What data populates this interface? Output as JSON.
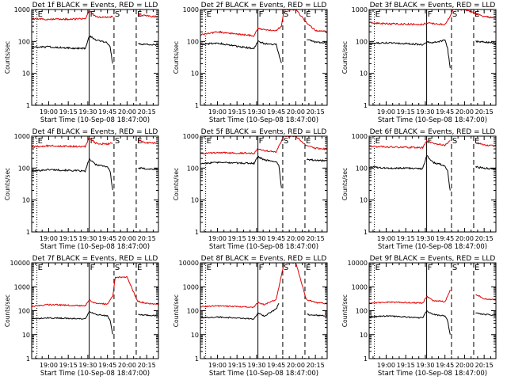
{
  "chart_data": [
    {
      "type": "line",
      "title": "Det 1f BLACK = Events, RED = LLD",
      "ylabel": "Counts/sec",
      "xlabel": "Start Time (10-Sep-08 18:47:00)",
      "yscale": "log",
      "ylim": [
        1,
        1000
      ],
      "y_ticks": [
        "1",
        "10",
        "100",
        "1000"
      ],
      "x_ticks": [
        "19:00",
        "19:15",
        "19:30",
        "19:45",
        "20:00",
        "20:15"
      ],
      "markers": [
        {
          "label": "E",
          "style": "dotted",
          "time": "18:51"
        },
        {
          "label": "F",
          "style": "solid",
          "time": "19:31"
        },
        {
          "label": "S",
          "style": "dashed",
          "time": "19:50"
        },
        {
          "label": "E",
          "style": "dashed",
          "time": "20:07"
        }
      ],
      "series": [
        {
          "color": "#e00000",
          "x": [
            "18:47",
            "19:00",
            "19:15",
            "19:28",
            "19:31",
            "19:36",
            "19:45",
            "19:49",
            "19:51",
            "20:00",
            "20:08",
            "20:15",
            "20:24"
          ],
          "y": [
            520,
            490,
            500,
            510,
            900,
            600,
            560,
            600,
            null,
            null,
            700,
            630,
            590
          ]
        },
        {
          "color": "#000000",
          "x": [
            "18:47",
            "19:00",
            "19:15",
            "19:28",
            "19:31",
            "19:36",
            "19:45",
            "19:47",
            "19:49",
            "19:51",
            "20:00",
            "20:08",
            "20:15",
            "20:24"
          ],
          "y": [
            65,
            68,
            62,
            60,
            150,
            110,
            90,
            70,
            20,
            null,
            null,
            85,
            80,
            78
          ]
        }
      ]
    },
    {
      "type": "line",
      "title": "Det 2f BLACK = Events, RED = LLD",
      "ylabel": "Counts/sec",
      "xlabel": "Start Time (10-Sep-08 18:47:00)",
      "yscale": "log",
      "ylim": [
        1,
        1000
      ],
      "y_ticks": [
        "1",
        "10",
        "100",
        "1000"
      ],
      "x_ticks": [
        "19:00",
        "19:15",
        "19:30",
        "19:45",
        "20:00",
        "20:15"
      ],
      "markers": [
        {
          "label": "E",
          "style": "dotted",
          "time": "18:51"
        },
        {
          "label": "F",
          "style": "solid",
          "time": "19:31"
        },
        {
          "label": "S",
          "style": "dashed",
          "time": "19:50"
        },
        {
          "label": "E",
          "style": "dashed",
          "time": "20:07"
        }
      ],
      "series": [
        {
          "color": "#e00000",
          "x": [
            "18:47",
            "19:00",
            "19:15",
            "19:28",
            "19:31",
            "19:36",
            "19:45",
            "19:49",
            "19:51",
            "20:00",
            "20:08",
            "20:15",
            "20:24"
          ],
          "y": [
            160,
            200,
            170,
            150,
            260,
            230,
            220,
            300,
            1000,
            1000,
            400,
            220,
            200
          ]
        },
        {
          "color": "#000000",
          "x": [
            "18:47",
            "19:00",
            "19:15",
            "19:28",
            "19:31",
            "19:36",
            "19:45",
            "19:47",
            "19:49",
            "19:51",
            "20:00",
            "20:08",
            "20:15",
            "20:24"
          ],
          "y": [
            80,
            90,
            70,
            60,
            100,
            85,
            80,
            40,
            20,
            null,
            null,
            120,
            95,
            90
          ]
        }
      ]
    },
    {
      "type": "line",
      "title": "Det 3f BLACK = Events, RED = LLD",
      "ylabel": "Counts/sec",
      "xlabel": "Start Time (10-Sep-08 18:47:00)",
      "yscale": "log",
      "ylim": [
        1,
        1000
      ],
      "y_ticks": [
        "1",
        "10",
        "100",
        "1000"
      ],
      "x_ticks": [
        "19:00",
        "19:15",
        "19:30",
        "19:45",
        "20:00",
        "20:15"
      ],
      "markers": [
        {
          "label": "E",
          "style": "dotted",
          "time": "18:51"
        },
        {
          "label": "F",
          "style": "solid",
          "time": "19:31"
        },
        {
          "label": "S",
          "style": "dashed",
          "time": "19:50"
        },
        {
          "label": "E",
          "style": "dashed",
          "time": "20:07"
        }
      ],
      "series": [
        {
          "color": "#e00000",
          "x": [
            "18:47",
            "19:00",
            "19:15",
            "19:28",
            "19:31",
            "19:36",
            "19:45",
            "19:49",
            "19:51",
            "20:00",
            "20:08",
            "20:15",
            "20:24"
          ],
          "y": [
            380,
            360,
            350,
            340,
            380,
            360,
            340,
            600,
            1000,
            1000,
            750,
            600,
            550
          ]
        },
        {
          "color": "#000000",
          "x": [
            "18:47",
            "19:00",
            "19:15",
            "19:28",
            "19:31",
            "19:36",
            "19:45",
            "19:47",
            "19:49",
            "19:51",
            "20:00",
            "20:08",
            "20:15",
            "20:24"
          ],
          "y": [
            85,
            90,
            85,
            80,
            95,
            90,
            110,
            60,
            15,
            null,
            null,
            100,
            95,
            90
          ]
        }
      ]
    },
    {
      "type": "line",
      "title": "Det 4f BLACK = Events, RED = LLD",
      "ylabel": "Counts/sec",
      "xlabel": "Start Time (10-Sep-08 18:47:00)",
      "yscale": "log",
      "ylim": [
        1,
        1000
      ],
      "y_ticks": [
        "1",
        "10",
        "100",
        "1000"
      ],
      "x_ticks": [
        "19:00",
        "19:15",
        "19:30",
        "19:45",
        "20:00",
        "20:15"
      ],
      "markers": [
        {
          "label": "E",
          "style": "dotted",
          "time": "18:51"
        },
        {
          "label": "F",
          "style": "solid",
          "time": "19:31"
        },
        {
          "label": "S",
          "style": "dashed",
          "time": "19:50"
        },
        {
          "label": "E",
          "style": "dashed",
          "time": "20:07"
        }
      ],
      "series": [
        {
          "color": "#e00000",
          "x": [
            "18:47",
            "19:00",
            "19:15",
            "19:28",
            "19:31",
            "19:36",
            "19:45",
            "19:49",
            "19:51",
            "20:00",
            "20:08",
            "20:15",
            "20:24"
          ],
          "y": [
            460,
            500,
            480,
            470,
            900,
            600,
            560,
            620,
            null,
            null,
            750,
            620,
            600
          ]
        },
        {
          "color": "#000000",
          "x": [
            "18:47",
            "19:00",
            "19:15",
            "19:28",
            "19:31",
            "19:36",
            "19:45",
            "19:47",
            "19:49",
            "19:51",
            "20:00",
            "20:08",
            "20:15",
            "20:24"
          ],
          "y": [
            80,
            90,
            85,
            80,
            190,
            130,
            110,
            80,
            20,
            null,
            null,
            100,
            95,
            90
          ]
        }
      ]
    },
    {
      "type": "line",
      "title": "Det 5f BLACK = Events, RED = LLD",
      "ylabel": "Counts/sec",
      "xlabel": "Start Time (10-Sep-08 18:47:00)",
      "yscale": "log",
      "ylim": [
        1,
        1000
      ],
      "y_ticks": [
        "1",
        "10",
        "100",
        "1000"
      ],
      "x_ticks": [
        "19:00",
        "19:15",
        "19:30",
        "19:45",
        "20:00",
        "20:15"
      ],
      "markers": [
        {
          "label": "E",
          "style": "dotted",
          "time": "18:51"
        },
        {
          "label": "F",
          "style": "solid",
          "time": "19:31"
        },
        {
          "label": "S",
          "style": "dashed",
          "time": "19:50"
        },
        {
          "label": "E",
          "style": "dashed",
          "time": "20:07"
        }
      ],
      "series": [
        {
          "color": "#e00000",
          "x": [
            "18:47",
            "19:00",
            "19:15",
            "19:28",
            "19:31",
            "19:36",
            "19:45",
            "19:49",
            "19:51",
            "20:00",
            "20:08",
            "20:15",
            "20:24"
          ],
          "y": [
            290,
            300,
            300,
            290,
            420,
            350,
            320,
            700,
            1000,
            1000,
            500,
            420,
            400
          ]
        },
        {
          "color": "#000000",
          "x": [
            "18:47",
            "19:00",
            "19:15",
            "19:28",
            "19:31",
            "19:36",
            "19:45",
            "19:47",
            "19:49",
            "19:51",
            "20:00",
            "20:08",
            "20:15",
            "20:24"
          ],
          "y": [
            140,
            150,
            145,
            140,
            230,
            180,
            160,
            120,
            25,
            null,
            null,
            190,
            175,
            170
          ]
        }
      ]
    },
    {
      "type": "line",
      "title": "Det 6f BLACK = Events, RED = LLD",
      "ylabel": "Counts/sec",
      "xlabel": "Start Time (10-Sep-08 18:47:00)",
      "yscale": "log",
      "ylim": [
        1,
        1000
      ],
      "y_ticks": [
        "1",
        "10",
        "100",
        "1000"
      ],
      "x_ticks": [
        "19:00",
        "19:15",
        "19:30",
        "19:45",
        "20:00",
        "20:15"
      ],
      "markers": [
        {
          "label": "E",
          "style": "dotted",
          "time": "18:51"
        },
        {
          "label": "F",
          "style": "solid",
          "time": "19:31"
        },
        {
          "label": "S",
          "style": "dashed",
          "time": "19:50"
        },
        {
          "label": "E",
          "style": "dashed",
          "time": "20:07"
        }
      ],
      "series": [
        {
          "color": "#e00000",
          "x": [
            "18:47",
            "19:00",
            "19:15",
            "19:28",
            "19:31",
            "19:36",
            "19:45",
            "19:49",
            "19:51",
            "20:00",
            "20:08",
            "20:15",
            "20:24"
          ],
          "y": [
            480,
            460,
            450,
            440,
            700,
            600,
            520,
            700,
            null,
            null,
            650,
            520,
            500
          ]
        },
        {
          "color": "#000000",
          "x": [
            "18:47",
            "19:00",
            "19:15",
            "19:28",
            "19:31",
            "19:36",
            "19:45",
            "19:47",
            "19:49",
            "19:51",
            "20:00",
            "20:08",
            "20:15",
            "20:24"
          ],
          "y": [
            110,
            100,
            100,
            95,
            250,
            150,
            120,
            80,
            20,
            null,
            null,
            110,
            100,
            95
          ]
        }
      ]
    },
    {
      "type": "line",
      "title": "Det 7f BLACK = Events, RED = LLD",
      "ylabel": "Counts/sec",
      "xlabel": "Start Time (10-Sep-08 18:47:00)",
      "yscale": "log",
      "ylim": [
        1,
        10000
      ],
      "y_ticks": [
        "1",
        "10",
        "100",
        "1000",
        "10000"
      ],
      "x_ticks": [
        "19:00",
        "19:15",
        "19:30",
        "19:45",
        "20:00",
        "20:15"
      ],
      "markers": [
        {
          "label": "E",
          "style": "dotted",
          "time": "18:51"
        },
        {
          "label": "F",
          "style": "solid",
          "time": "19:31"
        },
        {
          "label": "S",
          "style": "dashed",
          "time": "19:50"
        },
        {
          "label": "E",
          "style": "dashed",
          "time": "20:07"
        }
      ],
      "series": [
        {
          "color": "#e00000",
          "x": [
            "18:47",
            "19:00",
            "19:15",
            "19:28",
            "19:31",
            "19:36",
            "19:45",
            "19:49",
            "19:51",
            "20:00",
            "20:08",
            "20:15",
            "20:24"
          ],
          "y": [
            150,
            180,
            170,
            160,
            280,
            200,
            190,
            400,
            2500,
            2500,
            250,
            200,
            190
          ]
        },
        {
          "color": "#000000",
          "x": [
            "18:47",
            "19:00",
            "19:15",
            "19:28",
            "19:31",
            "19:36",
            "19:45",
            "19:47",
            "19:49",
            "19:51",
            "20:00",
            "20:08",
            "20:15",
            "20:24"
          ],
          "y": [
            45,
            50,
            48,
            45,
            90,
            70,
            60,
            40,
            10,
            null,
            null,
            70,
            65,
            62
          ]
        }
      ]
    },
    {
      "type": "line",
      "title": "Det 8f BLACK = Events, RED = LLD",
      "ylabel": "Counts/sec",
      "xlabel": "Start Time (10-Sep-08 18:47:00)",
      "yscale": "log",
      "ylim": [
        1,
        10000
      ],
      "y_ticks": [
        "1",
        "10",
        "100",
        "1000",
        "10000"
      ],
      "x_ticks": [
        "19:00",
        "19:15",
        "19:30",
        "19:45",
        "20:00",
        "20:15"
      ],
      "markers": [
        {
          "label": "E",
          "style": "dotted",
          "time": "18:51"
        },
        {
          "label": "F",
          "style": "solid",
          "time": "19:31"
        },
        {
          "label": "S",
          "style": "dashed",
          "time": "19:50"
        },
        {
          "label": "E",
          "style": "dashed",
          "time": "20:07"
        }
      ],
      "series": [
        {
          "color": "#e00000",
          "x": [
            "18:47",
            "19:00",
            "19:15",
            "19:28",
            "19:31",
            "19:36",
            "19:45",
            "19:49",
            "19:51",
            "20:00",
            "20:08",
            "20:15",
            "20:24"
          ],
          "y": [
            150,
            160,
            150,
            140,
            220,
            180,
            300,
            3000,
            10000,
            10000,
            300,
            220,
            200
          ]
        },
        {
          "color": "#000000",
          "x": [
            "18:47",
            "19:00",
            "19:15",
            "19:28",
            "19:31",
            "19:36",
            "19:45",
            "19:47",
            "19:49",
            "19:51",
            "20:00",
            "20:08",
            "20:15",
            "20:24"
          ],
          "y": [
            50,
            55,
            50,
            45,
            80,
            60,
            120,
            200,
            null,
            null,
            null,
            70,
            65,
            60
          ]
        }
      ]
    },
    {
      "type": "line",
      "title": "Det 9f BLACK = Events, RED = LLD",
      "ylabel": "Counts/sec",
      "xlabel": "Start Time (10-Sep-08 18:47:00)",
      "yscale": "log",
      "ylim": [
        1,
        10000
      ],
      "y_ticks": [
        "1",
        "10",
        "100",
        "1000",
        "10000"
      ],
      "x_ticks": [
        "19:00",
        "19:15",
        "19:30",
        "19:45",
        "20:00",
        "20:15"
      ],
      "markers": [
        {
          "label": "E",
          "style": "dotted",
          "time": "18:51"
        },
        {
          "label": "F",
          "style": "solid",
          "time": "19:31"
        },
        {
          "label": "S",
          "style": "dashed",
          "time": "19:50"
        },
        {
          "label": "E",
          "style": "dashed",
          "time": "20:07"
        }
      ],
      "series": [
        {
          "color": "#e00000",
          "x": [
            "18:47",
            "19:00",
            "19:15",
            "19:28",
            "19:31",
            "19:36",
            "19:45",
            "19:49",
            "19:51",
            "20:00",
            "20:08",
            "20:15",
            "20:24"
          ],
          "y": [
            200,
            230,
            220,
            210,
            400,
            260,
            240,
            700,
            null,
            null,
            500,
            320,
            280
          ]
        },
        {
          "color": "#000000",
          "x": [
            "18:47",
            "19:00",
            "19:15",
            "19:28",
            "19:31",
            "19:36",
            "19:45",
            "19:47",
            "19:49",
            "19:51",
            "20:00",
            "20:08",
            "20:15",
            "20:24"
          ],
          "y": [
            55,
            60,
            55,
            50,
            100,
            70,
            60,
            40,
            10,
            null,
            null,
            80,
            70,
            65
          ]
        }
      ]
    }
  ]
}
